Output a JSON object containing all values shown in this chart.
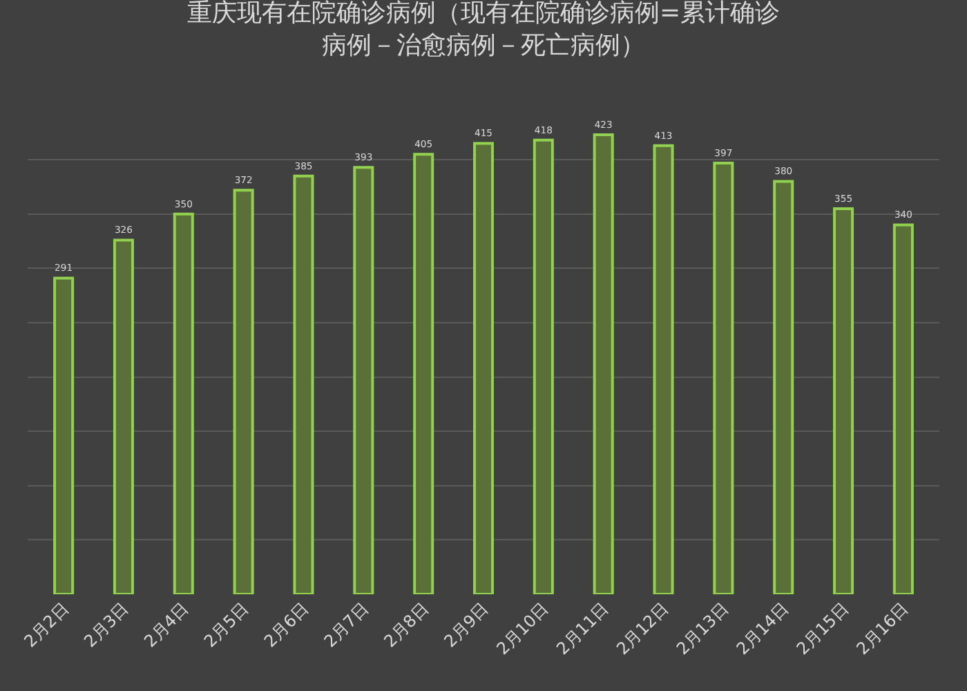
{
  "chart_data": {
    "type": "bar",
    "title": "重庆现有在院确诊病例（现有在院确诊病例=累计确诊病例－治愈病例－死亡病例）",
    "categories": [
      "2月2日",
      "2月3日",
      "2月4日",
      "2月5日",
      "2月6日",
      "2月7日",
      "2月8日",
      "2月9日",
      "2月10日",
      "2月11日",
      "2月12日",
      "2月13日",
      "2月14日",
      "2月15日",
      "2月16日"
    ],
    "values": [
      291,
      326,
      350,
      372,
      385,
      393,
      405,
      415,
      418,
      423,
      413,
      397,
      380,
      355,
      340
    ],
    "value_labels": [
      "291",
      "326",
      "350",
      "372",
      "385",
      "393",
      "405",
      "415",
      "418",
      "423",
      "413",
      "397",
      "380",
      "355",
      "340"
    ],
    "color": "#5a7038",
    "tick_labels": "x",
    "grid": "y"
  }
}
